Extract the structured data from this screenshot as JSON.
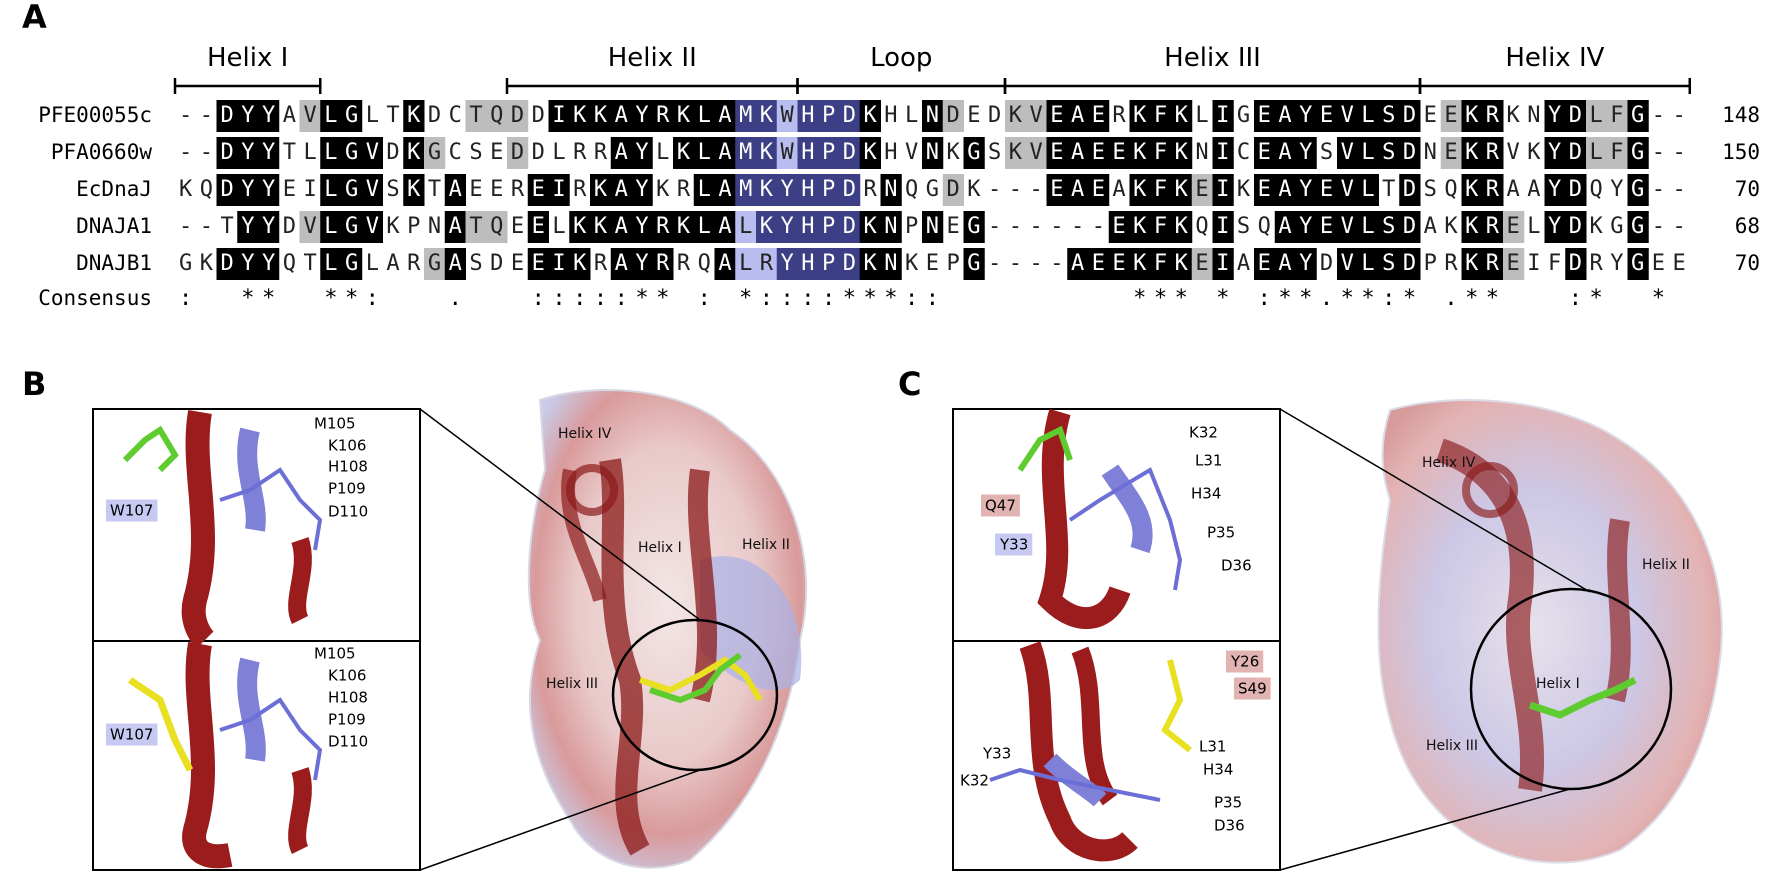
{
  "panel_a": {
    "label": "A",
    "regions": [
      "Helix I",
      "Helix II",
      "Loop",
      "Helix III",
      "Helix IV"
    ],
    "sequences": [
      {
        "name": "PFE00055c",
        "residues": "--DYYAVLGLTKDCTQDDIKKAYRKLAMKWHPDKHLNDEDKVEAERKFKLIGEAYEVLSDEEKRKNYDLFG--",
        "end": 148
      },
      {
        "name": "PFA0660w",
        "residues": "--DYYTLLGVDKGCSEDDLRRAYLKLAMKWHPDKHVNKGSKVEAEEKFKNICEAYSVLSDNEKRVKYDLFG--",
        "end": 150
      },
      {
        "name": "EcDnaJ",
        "residues": "KQDYYEILGVSKTAEEREIRKAYKRLAMKYHPDRNQGDK---EAEAKFKEIKEAYEVLTDSQKRAAYDQYG--",
        "end": 70
      },
      {
        "name": "DNAJA1",
        "residues": "--TYYDVLGVKPNATQEELKKAYRKLALKYHPDKNPNEG------EKFKQISQAYEVLSDAKKRELYDKGG--",
        "end": 68
      },
      {
        "name": "DNAJB1",
        "residues": "GKDYYQTLGLARGASDEEIKRAYRRQALRYHPDKNKEPG----AEEKFKEIAEAYDVLSDPRKREIFDRYGEE",
        "end": 70
      }
    ],
    "consensus": {
      "name": "Consensus",
      "symbols": ":  **  **:   .   :::::** : *::::***::         *** * :**.**:* .**   :*  *"
    }
  },
  "panel_b": {
    "label": "B",
    "inset_top": [
      "M105",
      "K106",
      "H108",
      "P109",
      "D110",
      "W107"
    ],
    "inset_bottom": [
      "M105",
      "K106",
      "H108",
      "P109",
      "D110",
      "W107"
    ],
    "structure": [
      "Helix IV",
      "Helix I",
      "Helix II",
      "Helix III"
    ]
  },
  "panel_c": {
    "label": "C",
    "inset_top": [
      "K32",
      "L31",
      "H34",
      "P35",
      "D36",
      "Q47",
      "Y33"
    ],
    "inset_bottom": [
      "Y26",
      "S49",
      "L31",
      "H34",
      "Y33",
      "K32",
      "P35",
      "D36"
    ],
    "structure": [
      "Helix IV",
      "Helix II",
      "Helix I",
      "Helix III"
    ]
  }
}
